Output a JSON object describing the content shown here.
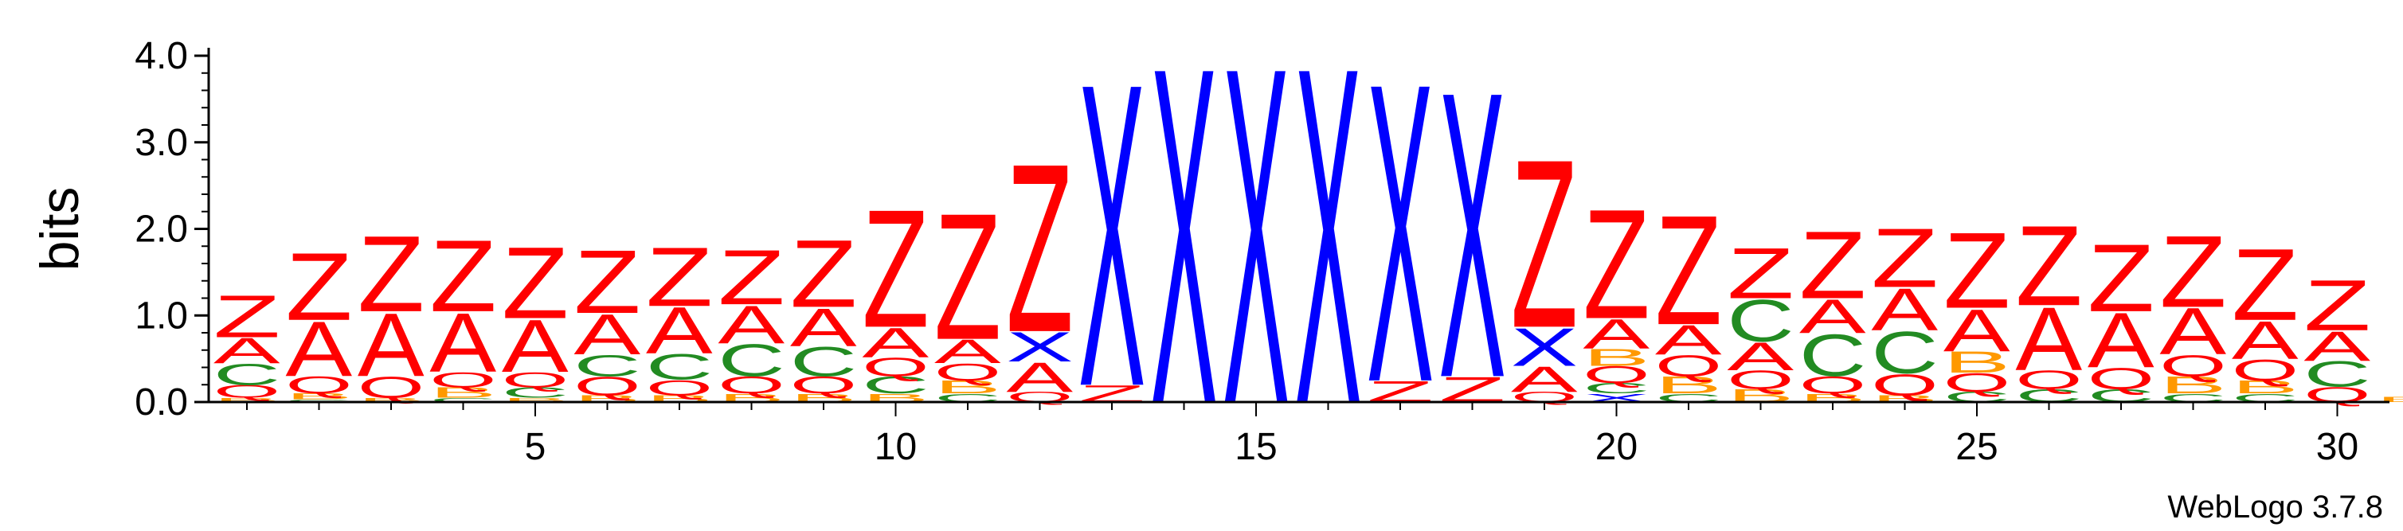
{
  "chart_data": {
    "type": "sequence-logo",
    "ylabel": "bits",
    "xlabel": "",
    "ylim": [
      0,
      4.0
    ],
    "yticks": [
      "0.0",
      "1.0",
      "2.0",
      "3.0",
      "4.0"
    ],
    "xticks": [
      5,
      10,
      15,
      20,
      25,
      30
    ],
    "positions": [
      1,
      2,
      3,
      4,
      5,
      6,
      7,
      8,
      9,
      10,
      11,
      12,
      13,
      14,
      15,
      16,
      17,
      18,
      19,
      20,
      21,
      22,
      23,
      24,
      25,
      26,
      27,
      28,
      29,
      30,
      31
    ],
    "colors": {
      "Z": "#ff0000",
      "A": "#ff0000",
      "Q": "#ff0000",
      "X": "#0000ff",
      "C": "#228b22",
      "B": "#ff9900"
    },
    "stacks": [
      [
        {
          "letter": "B",
          "height": 0.05
        },
        {
          "letter": "Q",
          "height": 0.15
        },
        {
          "letter": "C",
          "height": 0.25
        },
        {
          "letter": "A",
          "height": 0.3
        },
        {
          "letter": "Z",
          "height": 0.5
        }
      ],
      [
        {
          "letter": "C",
          "height": 0.03
        },
        {
          "letter": "B",
          "height": 0.07
        },
        {
          "letter": "Q",
          "height": 0.2
        },
        {
          "letter": "A",
          "height": 0.65
        },
        {
          "letter": "Z",
          "height": 0.8
        }
      ],
      [
        {
          "letter": "B",
          "height": 0.05
        },
        {
          "letter": "Q",
          "height": 0.25
        },
        {
          "letter": "A",
          "height": 0.75
        },
        {
          "letter": "Z",
          "height": 0.9
        }
      ],
      [
        {
          "letter": "C",
          "height": 0.05
        },
        {
          "letter": "B",
          "height": 0.12
        },
        {
          "letter": "Q",
          "height": 0.18
        },
        {
          "letter": "A",
          "height": 0.7
        },
        {
          "letter": "Z",
          "height": 0.85
        }
      ],
      [
        {
          "letter": "B",
          "height": 0.05
        },
        {
          "letter": "C",
          "height": 0.12
        },
        {
          "letter": "Q",
          "height": 0.18
        },
        {
          "letter": "A",
          "height": 0.62
        },
        {
          "letter": "Z",
          "height": 0.85
        }
      ],
      [
        {
          "letter": "B",
          "height": 0.08
        },
        {
          "letter": "Q",
          "height": 0.22
        },
        {
          "letter": "C",
          "height": 0.25
        },
        {
          "letter": "A",
          "height": 0.48
        },
        {
          "letter": "Z",
          "height": 0.75
        }
      ],
      [
        {
          "letter": "B",
          "height": 0.08
        },
        {
          "letter": "Q",
          "height": 0.18
        },
        {
          "letter": "C",
          "height": 0.3
        },
        {
          "letter": "A",
          "height": 0.55
        },
        {
          "letter": "Z",
          "height": 0.7
        }
      ],
      [
        {
          "letter": "B",
          "height": 0.1
        },
        {
          "letter": "Q",
          "height": 0.2
        },
        {
          "letter": "C",
          "height": 0.38
        },
        {
          "letter": "A",
          "height": 0.45
        },
        {
          "letter": "Z",
          "height": 0.65
        }
      ],
      [
        {
          "letter": "B",
          "height": 0.1
        },
        {
          "letter": "Q",
          "height": 0.2
        },
        {
          "letter": "C",
          "height": 0.35
        },
        {
          "letter": "A",
          "height": 0.45
        },
        {
          "letter": "Z",
          "height": 0.8
        }
      ],
      [
        {
          "letter": "B",
          "height": 0.1
        },
        {
          "letter": "C",
          "height": 0.2
        },
        {
          "letter": "Q",
          "height": 0.22
        },
        {
          "letter": "A",
          "height": 0.35
        },
        {
          "letter": "Z",
          "height": 1.4
        }
      ],
      [
        {
          "letter": "C",
          "height": 0.1
        },
        {
          "letter": "B",
          "height": 0.15
        },
        {
          "letter": "Q",
          "height": 0.2
        },
        {
          "letter": "A",
          "height": 0.28
        },
        {
          "letter": "Z",
          "height": 1.5
        }
      ],
      [
        {
          "letter": "Q",
          "height": 0.12
        },
        {
          "letter": "A",
          "height": 0.35
        },
        {
          "letter": "X",
          "height": 0.35
        },
        {
          "letter": "Z",
          "height": 2.0
        }
      ],
      [
        {
          "letter": "Z",
          "height": 0.2
        },
        {
          "letter": "X",
          "height": 3.6
        }
      ],
      [
        {
          "letter": "X",
          "height": 4.0
        }
      ],
      [
        {
          "letter": "X",
          "height": 4.0
        }
      ],
      [
        {
          "letter": "X",
          "height": 4.0
        }
      ],
      [
        {
          "letter": "Z",
          "height": 0.25
        },
        {
          "letter": "X",
          "height": 3.55
        }
      ],
      [
        {
          "letter": "Z",
          "height": 0.3
        },
        {
          "letter": "X",
          "height": 3.4
        }
      ],
      [
        {
          "letter": "Q",
          "height": 0.12
        },
        {
          "letter": "A",
          "height": 0.3
        },
        {
          "letter": "X",
          "height": 0.45
        },
        {
          "letter": "Z",
          "height": 2.0
        }
      ],
      [
        {
          "letter": "X",
          "height": 0.1
        },
        {
          "letter": "C",
          "height": 0.12
        },
        {
          "letter": "Q",
          "height": 0.2
        },
        {
          "letter": "B",
          "height": 0.2
        },
        {
          "letter": "A",
          "height": 0.35
        },
        {
          "letter": "Z",
          "height": 1.3
        }
      ],
      [
        {
          "letter": "C",
          "height": 0.1
        },
        {
          "letter": "B",
          "height": 0.2
        },
        {
          "letter": "Q",
          "height": 0.25
        },
        {
          "letter": "A",
          "height": 0.35
        },
        {
          "letter": "Z",
          "height": 1.3
        }
      ],
      [
        {
          "letter": "B",
          "height": 0.15
        },
        {
          "letter": "Q",
          "height": 0.22
        },
        {
          "letter": "A",
          "height": 0.33
        },
        {
          "letter": "C",
          "height": 0.5
        },
        {
          "letter": "Z",
          "height": 0.6
        }
      ],
      [
        {
          "letter": "B",
          "height": 0.1
        },
        {
          "letter": "Q",
          "height": 0.2
        },
        {
          "letter": "C",
          "height": 0.5
        },
        {
          "letter": "A",
          "height": 0.4
        },
        {
          "letter": "Z",
          "height": 0.8
        }
      ],
      [
        {
          "letter": "B",
          "height": 0.08
        },
        {
          "letter": "Q",
          "height": 0.25
        },
        {
          "letter": "C",
          "height": 0.5
        },
        {
          "letter": "A",
          "height": 0.5
        },
        {
          "letter": "Z",
          "height": 0.7
        }
      ],
      [
        {
          "letter": "C",
          "height": 0.12
        },
        {
          "letter": "Q",
          "height": 0.22
        },
        {
          "letter": "B",
          "height": 0.25
        },
        {
          "letter": "A",
          "height": 0.5
        },
        {
          "letter": "Z",
          "height": 0.9
        }
      ],
      [
        {
          "letter": "C",
          "height": 0.15
        },
        {
          "letter": "Q",
          "height": 0.22
        },
        {
          "letter": "A",
          "height": 0.75
        },
        {
          "letter": "Z",
          "height": 0.95
        }
      ],
      [
        {
          "letter": "C",
          "height": 0.15
        },
        {
          "letter": "Q",
          "height": 0.25
        },
        {
          "letter": "A",
          "height": 0.65
        },
        {
          "letter": "Z",
          "height": 0.8
        }
      ],
      [
        {
          "letter": "C",
          "height": 0.1
        },
        {
          "letter": "B",
          "height": 0.2
        },
        {
          "letter": "Q",
          "height": 0.25
        },
        {
          "letter": "A",
          "height": 0.55
        },
        {
          "letter": "Z",
          "height": 0.85
        }
      ],
      [
        {
          "letter": "C",
          "height": 0.1
        },
        {
          "letter": "B",
          "height": 0.15
        },
        {
          "letter": "Q",
          "height": 0.25
        },
        {
          "letter": "A",
          "height": 0.45
        },
        {
          "letter": "Z",
          "height": 0.85
        }
      ],
      [
        {
          "letter": "Q",
          "height": 0.18
        },
        {
          "letter": "C",
          "height": 0.3
        },
        {
          "letter": "A",
          "height": 0.35
        },
        {
          "letter": "Z",
          "height": 0.6
        }
      ],
      [
        {
          "letter": "B",
          "height": 0.06
        }
      ]
    ],
    "footer": "WebLogo 3.7.8"
  }
}
